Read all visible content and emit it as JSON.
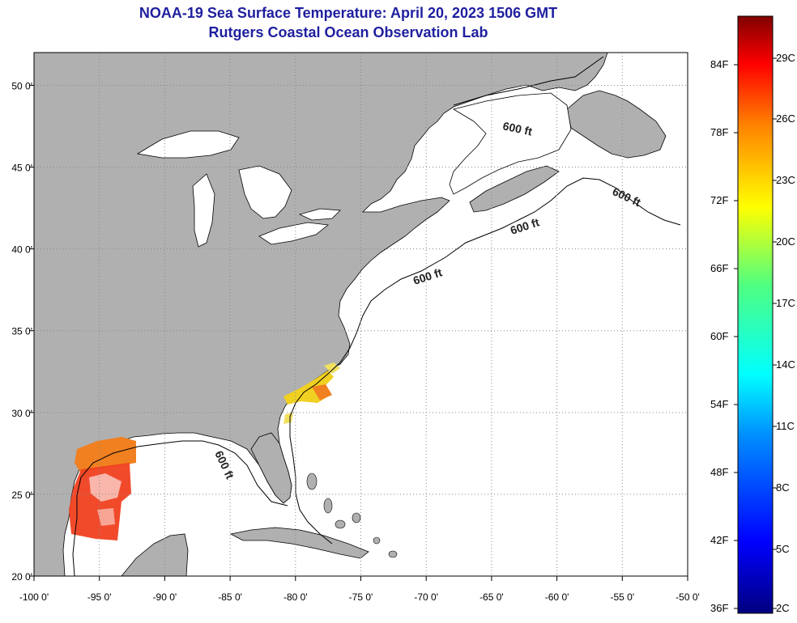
{
  "title": "NOAA-19 Sea Surface Temperature:  April 20, 2023 1506 GMT",
  "subtitle": "Rutgers Coastal Ocean Observation Lab",
  "map": {
    "lon_range": [
      -100,
      -50
    ],
    "lat_range": [
      20,
      52
    ],
    "lon_ticks": [
      {
        "value": -100,
        "label": "-100 0'"
      },
      {
        "value": -95,
        "label": "-95 0'"
      },
      {
        "value": -90,
        "label": "-90 0'"
      },
      {
        "value": -85,
        "label": "-85 0'"
      },
      {
        "value": -80,
        "label": "-80 0'"
      },
      {
        "value": -75,
        "label": "-75 0'"
      },
      {
        "value": -70,
        "label": "-70 0'"
      },
      {
        "value": -65,
        "label": "-65 0'"
      },
      {
        "value": -60,
        "label": "-60 0'"
      },
      {
        "value": -55,
        "label": "-55 0'"
      },
      {
        "value": -50,
        "label": "-50 0'"
      }
    ],
    "lat_ticks": [
      {
        "value": 50,
        "label": "50 0'"
      },
      {
        "value": 45,
        "label": "45 0'"
      },
      {
        "value": 40,
        "label": "40 0'"
      },
      {
        "value": 35,
        "label": "35 0'"
      },
      {
        "value": 30,
        "label": "30 0'"
      },
      {
        "value": 25,
        "label": "25 0'"
      },
      {
        "value": 20,
        "label": "20 0'"
      }
    ],
    "contour_labels": [
      "600 ft",
      "600 ft",
      "600 ft",
      "600 ft",
      "600 ft"
    ],
    "colors": {
      "land": "#b0b0b0",
      "ocean": "#ffffff",
      "grid": "#888888",
      "coast": "#000000",
      "lakes": "#ffffff"
    }
  },
  "colorbar": {
    "fahrenheit_labels": [
      "84F",
      "78F",
      "72F",
      "66F",
      "60F",
      "54F",
      "48F",
      "42F",
      "36F"
    ],
    "celsius_labels": [
      "29C",
      "26C",
      "23C",
      "20C",
      "17C",
      "14C",
      "11C",
      "8C",
      "5C",
      "2C"
    ]
  }
}
